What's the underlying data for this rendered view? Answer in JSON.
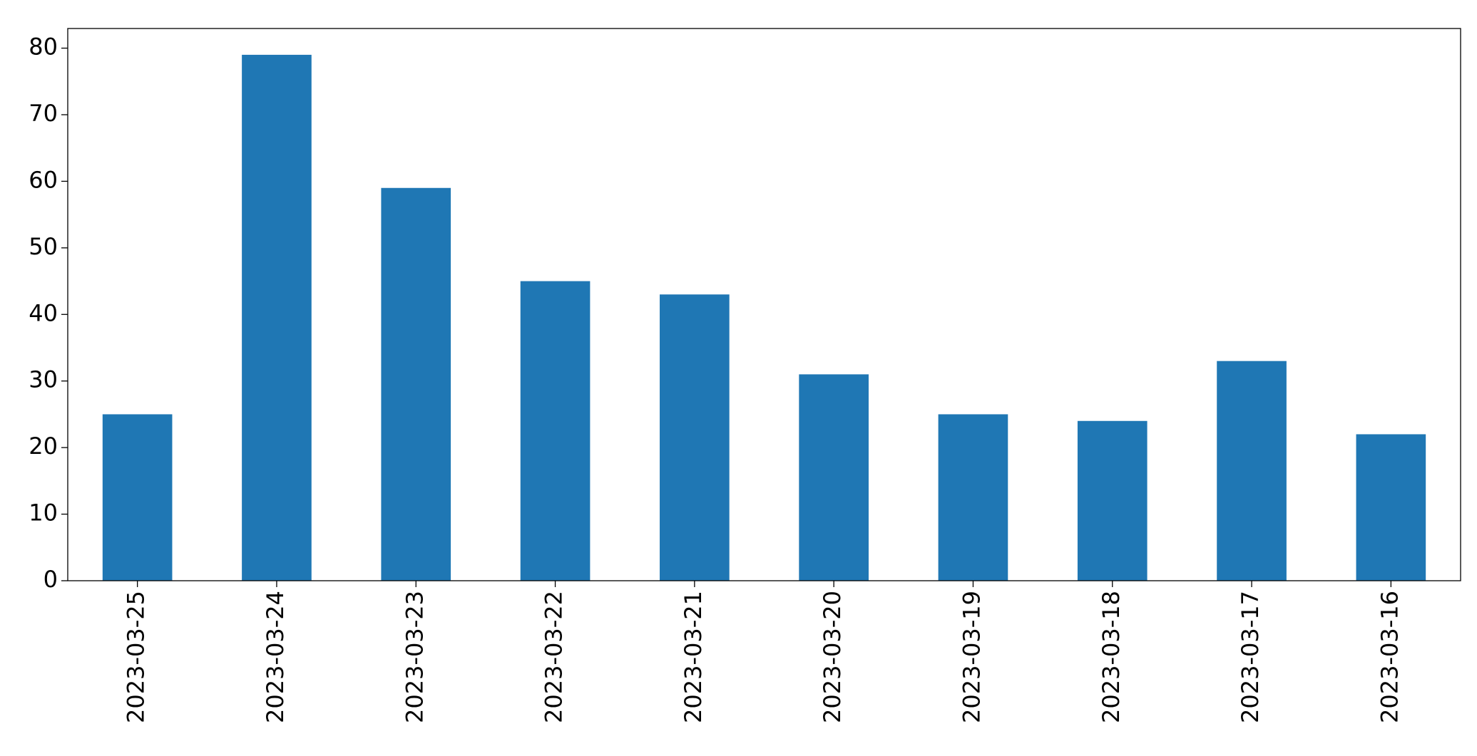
{
  "chart_data": {
    "type": "bar",
    "categories": [
      "2023-03-25",
      "2023-03-24",
      "2023-03-23",
      "2023-03-22",
      "2023-03-21",
      "2023-03-20",
      "2023-03-19",
      "2023-03-18",
      "2023-03-17",
      "2023-03-16"
    ],
    "values": [
      25,
      79,
      59,
      45,
      43,
      31,
      25,
      24,
      33,
      22
    ],
    "color": "#1f77b4",
    "ylim": [
      0,
      82.95
    ],
    "yticks": [
      0,
      10,
      20,
      30,
      40,
      50,
      60,
      70,
      80
    ],
    "grid": false
  }
}
